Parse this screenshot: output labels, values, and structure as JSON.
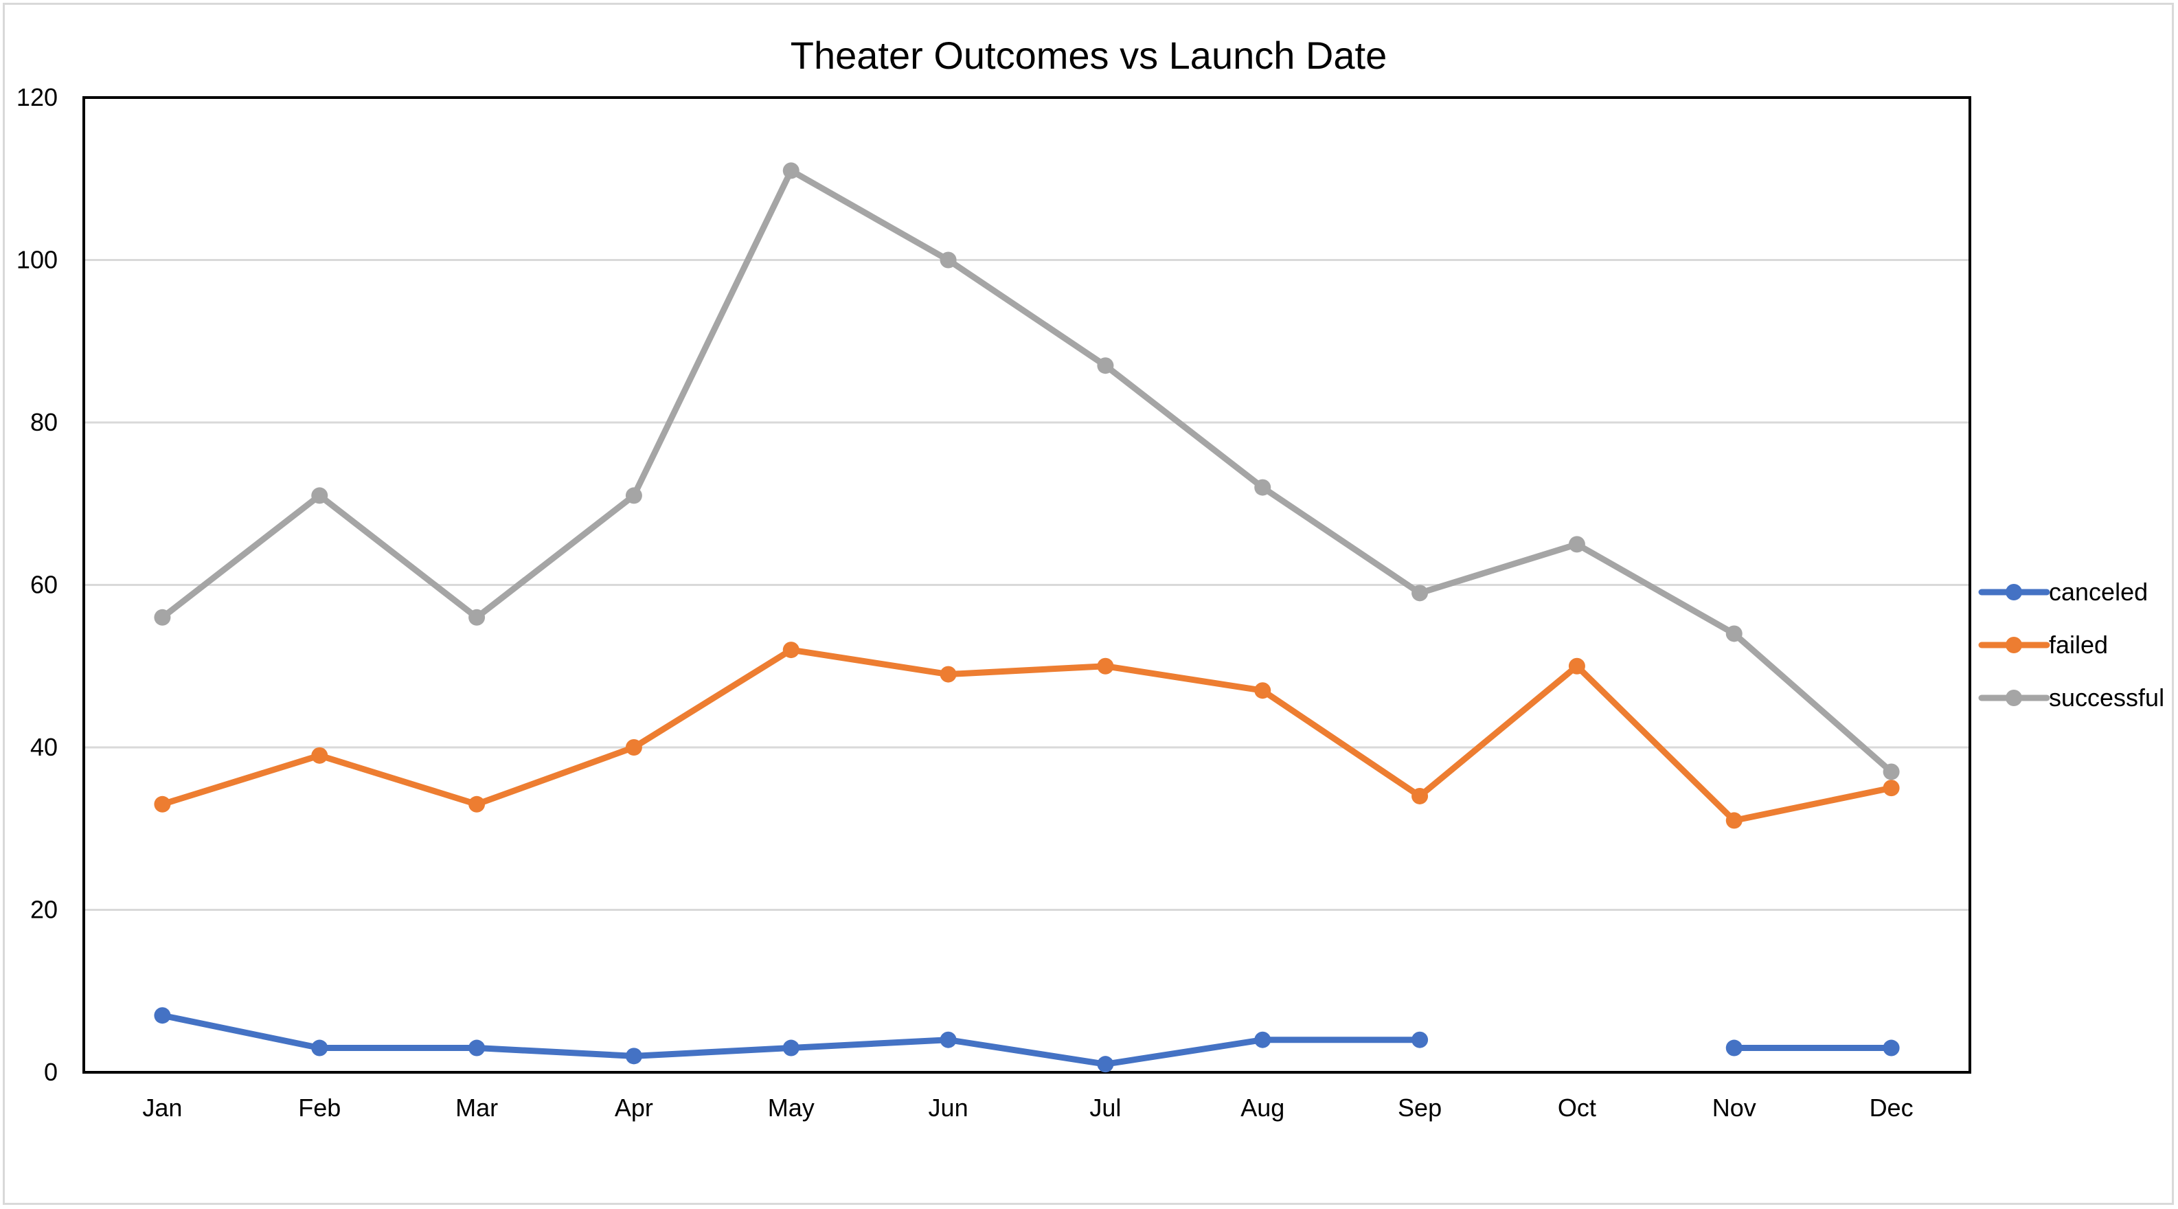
{
  "chart_data": {
    "type": "line",
    "title": "Theater Outcomes vs Launch Date",
    "xlabel": "",
    "ylabel": "",
    "categories": [
      "Jan",
      "Feb",
      "Mar",
      "Apr",
      "May",
      "Jun",
      "Jul",
      "Aug",
      "Sep",
      "Oct",
      "Nov",
      "Dec"
    ],
    "ylim": [
      0,
      120
    ],
    "yticks": [
      0,
      20,
      40,
      60,
      80,
      100,
      120
    ],
    "grid": true,
    "legend_position": "right",
    "series": [
      {
        "name": "canceled",
        "color": "#4472C4",
        "values": [
          7,
          3,
          3,
          2,
          3,
          4,
          1,
          4,
          4,
          null,
          3,
          3
        ]
      },
      {
        "name": "failed",
        "color": "#ED7D31",
        "values": [
          33,
          39,
          33,
          40,
          52,
          49,
          50,
          47,
          34,
          50,
          31,
          35
        ]
      },
      {
        "name": "successful",
        "color": "#A5A5A5",
        "values": [
          56,
          71,
          56,
          71,
          111,
          100,
          87,
          72,
          59,
          65,
          54,
          37
        ]
      }
    ]
  }
}
